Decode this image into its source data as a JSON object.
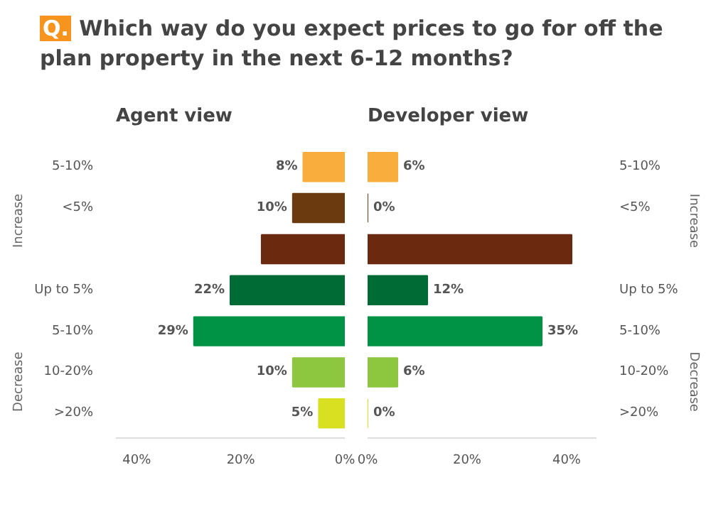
{
  "chart_data": [
    {
      "type": "bar",
      "orientation": "horizontal",
      "title": "Q. Which way do you expect prices to go for off the plan property in the next 6-12 months?",
      "subtitle": "Agent view",
      "categories": [
        "5-10%",
        "<5%",
        null,
        "Up to 5%",
        "5-10%",
        "10-20%",
        ">20%"
      ],
      "values": [
        8,
        10,
        16,
        22,
        29,
        10,
        5
      ],
      "colors": [
        "#f9ad3c",
        "#6b3a0f",
        "#6b2a10",
        "#006b35",
        "#009245",
        "#8dc63f",
        "#d9e021"
      ],
      "value_labels": [
        "8%",
        "10%",
        null,
        "22%",
        "29%",
        "10%",
        "5%"
      ],
      "xlim": [
        44,
        0
      ],
      "xticks": [
        {
          "value": 40,
          "label": "40%"
        },
        {
          "value": 20,
          "label": "20%"
        },
        {
          "value": 0,
          "label": "0%"
        }
      ],
      "annotations": [
        "Increase",
        "Decrease"
      ],
      "grid": false
    },
    {
      "type": "bar",
      "orientation": "horizontal",
      "subtitle": "Developer view",
      "categories": [
        "5-10%",
        "<5%",
        null,
        "Up to 5%",
        "5-10%",
        "10-20%",
        ">20%"
      ],
      "values": [
        6,
        0,
        41,
        12,
        35,
        6,
        0
      ],
      "colors": [
        "#f9ad3c",
        "#6b3a0f",
        "#6b2a10",
        "#006b35",
        "#009245",
        "#8dc63f",
        "#d9e021"
      ],
      "value_labels": [
        "6%",
        "0%",
        null,
        "12%",
        "35%",
        "6%",
        "0%"
      ],
      "xlim": [
        0,
        46
      ],
      "xticks": [
        {
          "value": 0,
          "label": "0%"
        },
        {
          "value": 20,
          "label": "20%"
        },
        {
          "value": 40,
          "label": "40%"
        }
      ],
      "annotations": [
        "Increase",
        "Decrease"
      ],
      "grid": false
    }
  ]
}
